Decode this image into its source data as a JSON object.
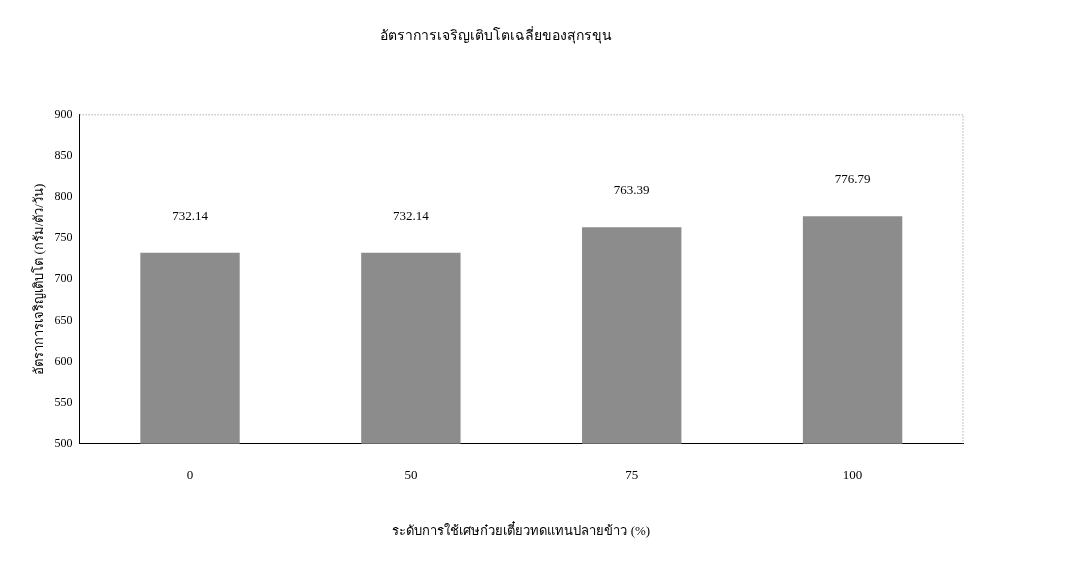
{
  "chart_data": {
    "type": "bar",
    "title": "อัตราการเจริญเติบโตเฉลี่ยของสุกรขุน",
    "xlabel": "ระดับการใช้เศษก๋วยเตี๋ยวทดแทนปลายข้าว (%)",
    "ylabel": "อัตราการเจริญเติบโต (กรัม/ตัว/วัน)",
    "categories": [
      "0",
      "50",
      "75",
      "100"
    ],
    "values": [
      732.14,
      732.14,
      763.39,
      776.79
    ],
    "color": "#8c8c8c",
    "ylim": [
      500,
      900
    ],
    "yticks": [
      500,
      550,
      600,
      650,
      700,
      750,
      800,
      850,
      900
    ],
    "data_labels": true,
    "legend": false
  }
}
